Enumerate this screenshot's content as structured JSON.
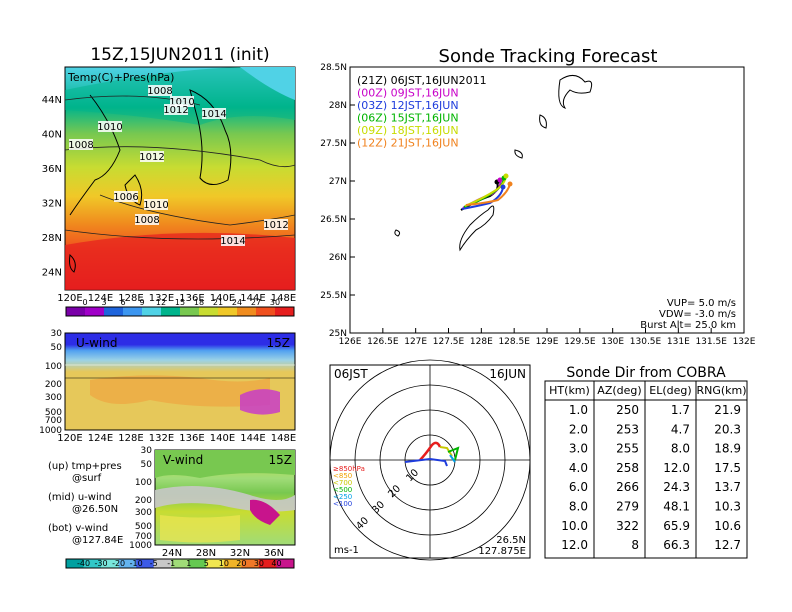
{
  "colors": {
    "temp_scale": [
      "#7a00a8",
      "#a000c8",
      "#1e64dc",
      "#3c96f0",
      "#50d2e6",
      "#00b48c",
      "#78c850",
      "#c8dc32",
      "#f0c828",
      "#f08c1e",
      "#f0501e",
      "#e61e1e"
    ],
    "u_wind": [
      "#2d2de6",
      "#50a0f0",
      "#9bd2e6",
      "#e6c85a",
      "#f0a03c",
      "#c83cc8"
    ],
    "v_wind_scale": [
      "#00a0a0",
      "#32c8c8",
      "#78e6dc",
      "#64b4f0",
      "#3c5ae6",
      "#c8c8c8",
      "#a0dc78",
      "#64c850",
      "#f0e650",
      "#f0b428",
      "#f07828",
      "#e61e1e",
      "#c8148c"
    ],
    "tracks": {
      "21Z": "#000000",
      "00Z": "#c800c8",
      "03Z": "#1e3cdc",
      "06Z": "#00b400",
      "09Z": "#c8dc00",
      "12Z": "#f0821e"
    }
  },
  "temp_map": {
    "title": "15Z,15JUN2011 (init)",
    "label": "Temp(C)+Pres(hPa)",
    "lon_ticks": [
      "120E",
      "124E",
      "128E",
      "132E",
      "136E",
      "140E",
      "144E",
      "148E"
    ],
    "lat_ticks": [
      "44N",
      "40N",
      "36N",
      "32N",
      "28N",
      "24N"
    ],
    "isobars": [
      "1008",
      "1010",
      "1012",
      "1010",
      "1014",
      "1008",
      "1012",
      "1006",
      "1010",
      "1008",
      "1012",
      "1014"
    ],
    "colorbar_ticks": [
      "0",
      "3",
      "6",
      "9",
      "12",
      "15",
      "18",
      "21",
      "24",
      "27",
      "30"
    ]
  },
  "u_wind": {
    "label": "U-wind",
    "time": "15Z",
    "p_ticks": [
      "30",
      "50",
      "100",
      "200",
      "300",
      "500",
      "700",
      "1000"
    ],
    "lon_ticks": [
      "120E",
      "124E",
      "128E",
      "132E",
      "136E",
      "140E",
      "144E",
      "148E"
    ]
  },
  "v_wind": {
    "label": "V-wind",
    "time": "15Z",
    "p_ticks": [
      "30",
      "50",
      "100",
      "200",
      "300",
      "500",
      "700",
      "1000"
    ],
    "lat_ticks": [
      "24N",
      "28N",
      "32N",
      "36N"
    ],
    "colorbar_ticks": [
      "-40",
      "-30",
      "-20",
      "-10",
      "-5",
      "-1",
      "1",
      "5",
      "10",
      "20",
      "30",
      "40"
    ]
  },
  "side_notes": {
    "up": "(up) tmp+pres",
    "up2": "@surf",
    "mid": "(mid) u-wind",
    "mid2": "@26.50N",
    "bot": "(bot) v-wind",
    "bot2": "@127.84E"
  },
  "tracking": {
    "title": "Sonde Tracking Forecast",
    "legend": [
      {
        "label": "(21Z)  06JST,16JUN2011",
        "color": "#000000"
      },
      {
        "label": "(00Z)  09JST,16JUN",
        "color": "#c800c8"
      },
      {
        "label": "(03Z)  12JST,16JUN",
        "color": "#1e3cdc"
      },
      {
        "label": "(06Z)  15JST,16JUN",
        "color": "#00b400"
      },
      {
        "label": "(09Z)  18JST,16JUN",
        "color": "#c8dc00"
      },
      {
        "label": "(12Z)  21JST,16JUN",
        "color": "#f0821e"
      }
    ],
    "lat_ticks": [
      "28.5N",
      "28N",
      "27.5N",
      "27N",
      "26.5N",
      "26N",
      "25.5N",
      "25N"
    ],
    "lon_ticks": [
      "126E",
      "126.5E",
      "127E",
      "127.5E",
      "128E",
      "128.5E",
      "129E",
      "129.5E",
      "130E",
      "130.5E",
      "131E",
      "131.5E",
      "132E"
    ],
    "vup": "VUP=  5.0  m/s",
    "vdw": "VDW=  -3.0  m/s",
    "burst": "Burst Alt=  25.0  km"
  },
  "polar": {
    "time": "06JST",
    "date": "16JUN",
    "ring_labels": [
      "10",
      "20",
      "30",
      "40"
    ],
    "level_legend": [
      "≥850hPa",
      "<850",
      "<700",
      "<500",
      "<250",
      "<100"
    ],
    "level_colors": [
      "#e61e1e",
      "#f0a000",
      "#c8c800",
      "#00b400",
      "#00a0e6",
      "#1e3cdc"
    ],
    "units": "ms-1",
    "lat": "26.5N",
    "lon": "127.875E"
  },
  "chart_data": {
    "type": "table",
    "title": "Sonde Dir from COBRA",
    "columns": [
      "HT(km)",
      "AZ(deg)",
      "EL(deg)",
      "RNG(km)"
    ],
    "rows": [
      [
        "1.0",
        "250",
        "1.7",
        "21.9"
      ],
      [
        "2.0",
        "253",
        "4.7",
        "20.3"
      ],
      [
        "3.0",
        "255",
        "8.0",
        "18.9"
      ],
      [
        "4.0",
        "258",
        "12.0",
        "17.5"
      ],
      [
        "6.0",
        "266",
        "24.3",
        "13.7"
      ],
      [
        "8.0",
        "279",
        "48.1",
        "10.3"
      ],
      [
        "10.0",
        "322",
        "65.9",
        "10.6"
      ],
      [
        "12.0",
        "8",
        "66.3",
        "12.7"
      ]
    ]
  }
}
